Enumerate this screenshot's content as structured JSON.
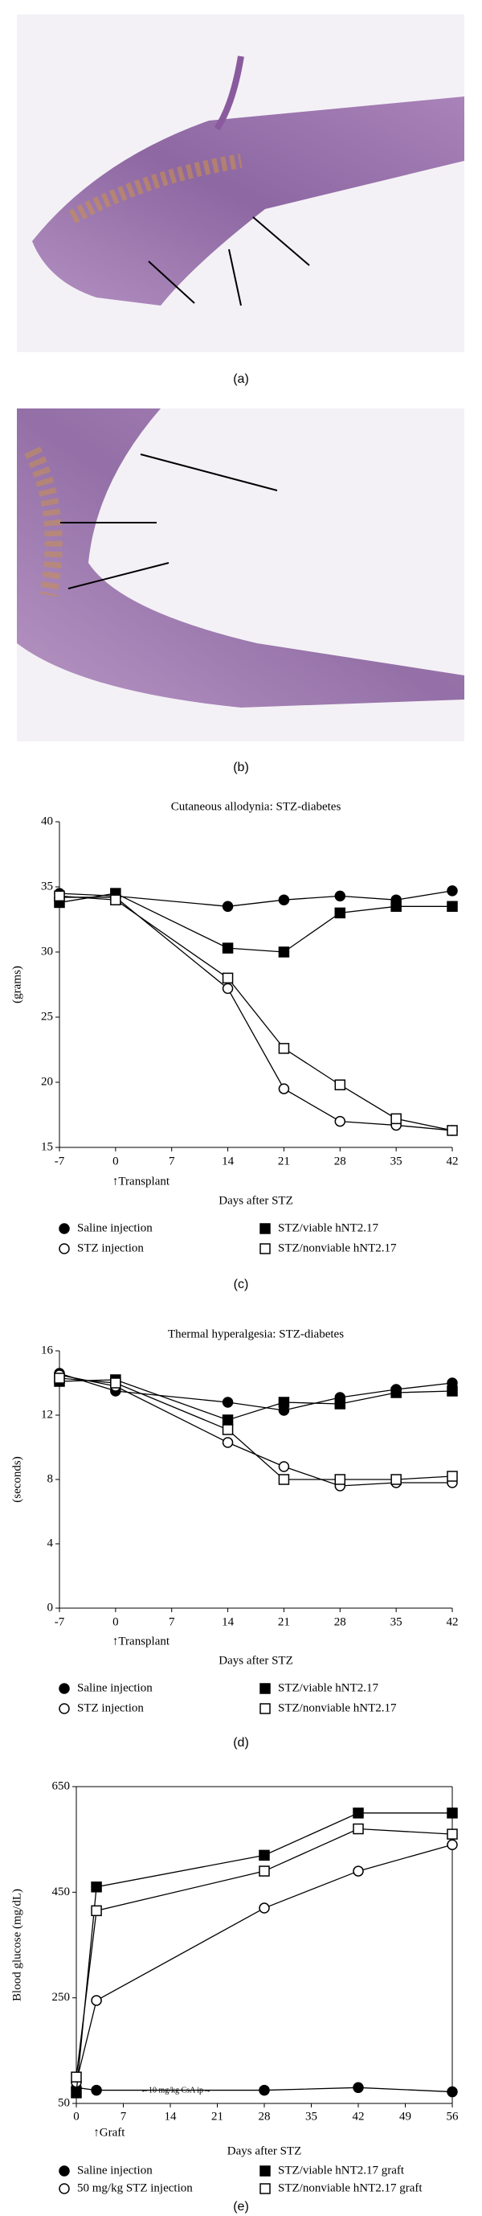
{
  "figure": {
    "panel_labels": [
      "(a)",
      "(b)",
      "(c)",
      "(d)",
      "(e)"
    ]
  },
  "chart_data": [
    {
      "type": "line",
      "title": "Cutaneous allodynia: STZ-diabetes",
      "x_label": "Days after STZ",
      "y_label": "(grams)",
      "annotation": "↑Transplant",
      "x": [
        -7,
        0,
        14,
        21,
        28,
        35,
        42
      ],
      "xlim": [
        -7,
        42
      ],
      "xticks": [
        -7,
        0,
        7,
        14,
        21,
        28,
        35,
        42
      ],
      "ylim": [
        15,
        40
      ],
      "yticks": [
        15,
        20,
        25,
        30,
        35,
        40
      ],
      "frame": false,
      "series": [
        {
          "name": "Saline injection",
          "color": "#000000",
          "marker": "circle",
          "filled": true,
          "values": [
            34.5,
            34.3,
            33.5,
            34,
            34.3,
            34,
            34.7
          ]
        },
        {
          "name": "STZ injection",
          "color": "#000000",
          "marker": "circle",
          "filled": false,
          "values": [
            34.2,
            34.2,
            27.2,
            19.5,
            17,
            16.7,
            16.3
          ]
        },
        {
          "name": "STZ/viable hNT2.17",
          "color": "#000000",
          "marker": "square",
          "filled": true,
          "values": [
            33.8,
            34.5,
            30.3,
            30,
            33,
            33.5,
            33.5
          ]
        },
        {
          "name": "STZ/nonviable hNT2.17",
          "color": "#000000",
          "marker": "square",
          "filled": false,
          "values": [
            34.3,
            34,
            28,
            22.6,
            19.8,
            17.2,
            16.3
          ]
        }
      ]
    },
    {
      "type": "line",
      "title": "Thermal hyperalgesia: STZ-diabetes",
      "x_label": "Days after STZ",
      "y_label": "(seconds)",
      "annotation": "↑Transplant",
      "x": [
        -7,
        0,
        14,
        21,
        28,
        35,
        42
      ],
      "xlim": [
        -7,
        42
      ],
      "xticks": [
        -7,
        0,
        7,
        14,
        21,
        28,
        35,
        42
      ],
      "ylim": [
        0,
        16
      ],
      "yticks": [
        0,
        4,
        8,
        12,
        16
      ],
      "frame": false,
      "series": [
        {
          "name": "Saline injection",
          "color": "#000000",
          "marker": "circle",
          "filled": true,
          "values": [
            14.6,
            13.5,
            12.8,
            12.3,
            13.1,
            13.6,
            14
          ]
        },
        {
          "name": "STZ injection",
          "color": "#000000",
          "marker": "circle",
          "filled": false,
          "values": [
            14.5,
            13.8,
            10.3,
            8.8,
            7.6,
            7.8,
            7.8
          ]
        },
        {
          "name": "STZ/viable hNT2.17",
          "color": "#000000",
          "marker": "square",
          "filled": true,
          "values": [
            14.1,
            14.2,
            11.7,
            12.8,
            12.7,
            13.4,
            13.5
          ]
        },
        {
          "name": "STZ/nonviable hNT2.17",
          "color": "#000000",
          "marker": "square",
          "filled": false,
          "values": [
            14.3,
            14,
            11.1,
            8,
            8,
            8,
            8.2
          ]
        }
      ]
    },
    {
      "type": "line",
      "x_label": "Days after STZ",
      "y_label": "Blood glucose (mg/dL)",
      "annotation": "↑Graft",
      "note": "←10 mg/kg CsA ip→",
      "x": [
        0,
        3,
        28,
        42,
        56
      ],
      "xlim": [
        0,
        56
      ],
      "xticks": [
        0,
        7,
        14,
        21,
        28,
        35,
        42,
        49,
        56
      ],
      "ylim": [
        50,
        650
      ],
      "yticks": [
        50,
        250,
        450,
        650
      ],
      "frame": true,
      "series": [
        {
          "name": "Saline injection",
          "color": "#000000",
          "marker": "circle",
          "filled": true,
          "values": [
            80,
            75,
            75,
            80,
            72
          ]
        },
        {
          "name": "50 mg/kg STZ injection",
          "color": "#000000",
          "marker": "circle",
          "filled": false,
          "values": [
            90,
            245,
            420,
            490,
            540
          ]
        },
        {
          "name": "STZ/viable hNT2.17 graft",
          "color": "#000000",
          "marker": "square",
          "filled": true,
          "values": [
            70,
            460,
            520,
            600,
            600
          ]
        },
        {
          "name": "STZ/nonviable hNT2.17 graft",
          "color": "#000000",
          "marker": "square",
          "filled": false,
          "values": [
            100,
            415,
            490,
            570,
            560
          ]
        }
      ]
    }
  ]
}
